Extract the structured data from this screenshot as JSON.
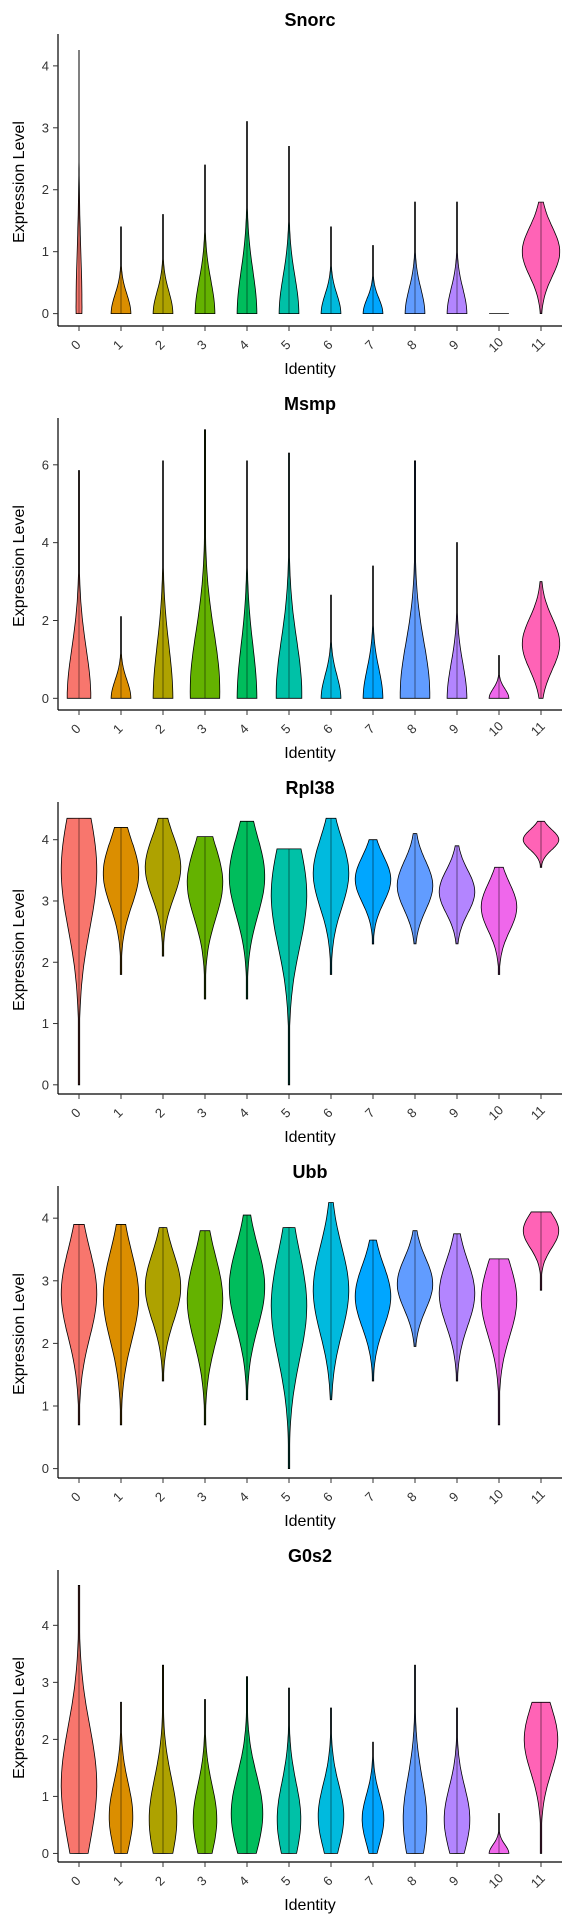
{
  "palette": [
    "#F8766D",
    "#DB8E00",
    "#AEA200",
    "#64B200",
    "#00BD5C",
    "#00C1A7",
    "#00BADE",
    "#00A6FF",
    "#619CFF",
    "#B385FF",
    "#EF67EB",
    "#FF63B6"
  ],
  "chart_data": [
    {
      "type": "violin",
      "title": "Snorc",
      "xlabel": "Identity",
      "ylabel": "Expression Level",
      "categories": [
        "0",
        "1",
        "2",
        "3",
        "4",
        "5",
        "6",
        "7",
        "8",
        "9",
        "10",
        "11"
      ],
      "yticks": [
        0,
        1,
        2,
        3,
        4
      ],
      "ylim": [
        -0.2,
        4.45
      ],
      "max": [
        4.25,
        1.4,
        1.6,
        2.4,
        3.1,
        2.7,
        1.4,
        1.1,
        1.8,
        1.8,
        0.0,
        1.8
      ],
      "median": [
        0.1,
        0,
        0,
        0,
        0,
        0,
        0,
        0,
        0,
        0,
        0,
        1.0
      ],
      "half_width": [
        0.15,
        0.5,
        0.5,
        0.5,
        0.5,
        0.5,
        0.5,
        0.5,
        0.5,
        0.5,
        0.5,
        0.95
      ]
    },
    {
      "type": "violin",
      "title": "Msmp",
      "xlabel": "Identity",
      "ylabel": "Expression Level",
      "categories": [
        "0",
        "1",
        "2",
        "3",
        "4",
        "5",
        "6",
        "7",
        "8",
        "9",
        "10",
        "11"
      ],
      "yticks": [
        0,
        2,
        4,
        6
      ],
      "ylim": [
        -0.3,
        7.1
      ],
      "max": [
        5.85,
        2.1,
        6.1,
        6.9,
        6.1,
        6.3,
        2.65,
        3.4,
        6.1,
        4.0,
        1.1,
        3.0
      ],
      "median": [
        0,
        0,
        0,
        0.2,
        0,
        0.1,
        0,
        0,
        0.1,
        0,
        0,
        1.4
      ],
      "half_width": [
        0.6,
        0.5,
        0.5,
        0.75,
        0.5,
        0.65,
        0.5,
        0.5,
        0.75,
        0.5,
        0.5,
        0.95
      ]
    },
    {
      "type": "violin",
      "title": "Rpl38",
      "xlabel": "Identity",
      "ylabel": "Expression Level",
      "categories": [
        "0",
        "1",
        "2",
        "3",
        "4",
        "5",
        "6",
        "7",
        "8",
        "9",
        "10",
        "11"
      ],
      "yticks": [
        0,
        1,
        2,
        3,
        4
      ],
      "ylim": [
        -0.15,
        4.55
      ],
      "max": [
        4.35,
        4.2,
        4.35,
        4.05,
        4.3,
        3.85,
        4.35,
        4.0,
        4.1,
        3.9,
        3.55,
        4.3
      ],
      "min": [
        0.0,
        1.8,
        2.1,
        1.4,
        1.4,
        0.0,
        1.8,
        2.3,
        2.3,
        2.3,
        1.8,
        3.55
      ],
      "median": [
        3.5,
        3.45,
        3.55,
        3.3,
        3.4,
        3.1,
        3.45,
        3.35,
        3.25,
        3.15,
        2.9,
        4.0
      ],
      "half_width": [
        0.9,
        0.9,
        0.9,
        0.9,
        0.9,
        0.9,
        0.9,
        0.9,
        0.9,
        0.9,
        0.9,
        0.9
      ]
    },
    {
      "type": "violin",
      "title": "Ubb",
      "xlabel": "Identity",
      "ylabel": "Expression Level",
      "categories": [
        "0",
        "1",
        "2",
        "3",
        "4",
        "5",
        "6",
        "7",
        "8",
        "9",
        "10",
        "11"
      ],
      "yticks": [
        0,
        1,
        2,
        3,
        4
      ],
      "ylim": [
        -0.15,
        4.45
      ],
      "max": [
        3.9,
        3.9,
        3.85,
        3.8,
        4.05,
        3.85,
        4.25,
        3.65,
        3.8,
        3.75,
        3.35,
        4.1
      ],
      "min": [
        0.7,
        0.7,
        1.4,
        0.7,
        1.1,
        0.0,
        1.1,
        1.4,
        1.95,
        1.4,
        0.7,
        2.85
      ],
      "median": [
        2.8,
        2.75,
        2.9,
        2.7,
        2.9,
        2.6,
        2.85,
        2.75,
        2.95,
        2.8,
        2.7,
        3.8
      ],
      "half_width": [
        0.9,
        0.9,
        0.9,
        0.9,
        0.9,
        0.9,
        0.9,
        0.9,
        0.9,
        0.9,
        0.9,
        0.9
      ]
    },
    {
      "type": "violin",
      "title": "G0s2",
      "xlabel": "Identity",
      "ylabel": "Expression Level",
      "categories": [
        "0",
        "1",
        "2",
        "3",
        "4",
        "5",
        "6",
        "7",
        "8",
        "9",
        "10",
        "11"
      ],
      "yticks": [
        0,
        1,
        2,
        3,
        4
      ],
      "ylim": [
        -0.15,
        4.9
      ],
      "max": [
        4.7,
        2.65,
        3.3,
        2.7,
        3.1,
        2.9,
        2.55,
        1.95,
        3.3,
        2.55,
        0.7,
        2.65
      ],
      "median": [
        1.2,
        0.65,
        0.6,
        0.6,
        0.7,
        0.6,
        0.65,
        0.6,
        0.6,
        0.6,
        0,
        2.0
      ],
      "half_width": [
        0.9,
        0.6,
        0.7,
        0.6,
        0.8,
        0.6,
        0.65,
        0.55,
        0.6,
        0.65,
        0.5,
        0.85
      ]
    }
  ]
}
